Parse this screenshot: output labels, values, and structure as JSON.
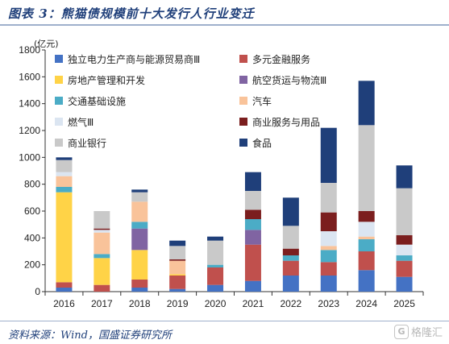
{
  "title": "图表 3：熊猫债规模前十大发行人行业变迁",
  "source": "资料来源：Wind，国盛证券研究所",
  "watermark": "格隆汇",
  "chart_data": {
    "type": "bar",
    "stacked": true,
    "unit_label": "(亿元)",
    "ylim": [
      0,
      1800
    ],
    "yticks": [
      0,
      200,
      400,
      600,
      800,
      1000,
      1200,
      1400,
      1600,
      1800
    ],
    "categories": [
      "2016",
      "2017",
      "2018",
      "2019",
      "2020",
      "2021",
      "2022",
      "2023",
      "2024",
      "2025"
    ],
    "legend_position": "top-left",
    "series": [
      {
        "name": "独立电力生产商与能源贸易商Ⅲ",
        "color": "#4472c4",
        "values": [
          30,
          0,
          30,
          20,
          50,
          80,
          120,
          120,
          160,
          110
        ]
      },
      {
        "name": "多元金融服务",
        "color": "#c0504d",
        "values": [
          40,
          50,
          60,
          100,
          130,
          270,
          110,
          100,
          140,
          120
        ]
      },
      {
        "name": "房地产管理和开发",
        "color": "#ffd347",
        "values": [
          670,
          200,
          220,
          10,
          0,
          0,
          0,
          0,
          0,
          0
        ]
      },
      {
        "name": "航空货运与物流Ⅲ",
        "color": "#8064a2",
        "values": [
          0,
          0,
          160,
          0,
          0,
          110,
          0,
          0,
          0,
          0
        ]
      },
      {
        "name": "交通基础设施",
        "color": "#4bacc6",
        "values": [
          40,
          30,
          50,
          0,
          20,
          80,
          40,
          90,
          90,
          40
        ]
      },
      {
        "name": "汽车",
        "color": "#f9c39a",
        "values": [
          80,
          160,
          150,
          100,
          0,
          0,
          0,
          30,
          20,
          0
        ]
      },
      {
        "name": "燃气Ⅲ",
        "color": "#dbe5f1",
        "values": [
          30,
          20,
          0,
          0,
          0,
          0,
          0,
          110,
          110,
          80
        ]
      },
      {
        "name": "商业服务与用品",
        "color": "#7b1e1e",
        "values": [
          0,
          10,
          0,
          10,
          0,
          70,
          50,
          140,
          80,
          70
        ]
      },
      {
        "name": "商业银行",
        "color": "#c9c9c9",
        "values": [
          90,
          130,
          70,
          100,
          180,
          140,
          170,
          220,
          640,
          350
        ]
      },
      {
        "name": "食品",
        "color": "#1f3f7a",
        "values": [
          20,
          0,
          20,
          40,
          30,
          140,
          210,
          410,
          330,
          170
        ]
      }
    ]
  }
}
